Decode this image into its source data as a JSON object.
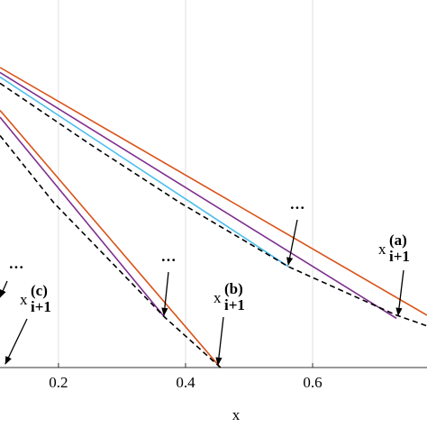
{
  "chart_data": {
    "type": "line",
    "xlabel": "x",
    "xlim": [
      0.108,
      0.78
    ],
    "xticks": [
      0.2,
      0.4,
      0.6
    ],
    "ylim": [
      0.53,
      6.36
    ],
    "grid": true,
    "series": [
      {
        "color": "#d95319",
        "dash": false,
        "x": [
          0.108,
          0.78
        ],
        "values": [
          5.29,
          1.36
        ]
      },
      {
        "color": "#7e2f8e",
        "dash": false,
        "x": [
          0.108,
          0.732
        ],
        "values": [
          5.21,
          1.31
        ]
      },
      {
        "color": "#4dbeee",
        "dash": false,
        "x": [
          0.108,
          0.562
        ],
        "values": [
          5.14,
          2.13
        ]
      },
      {
        "color": "#000000",
        "dash": true,
        "x": [
          0.108,
          0.25,
          0.392,
          0.562,
          0.732,
          0.78
        ],
        "values": [
          5.04,
          4.07,
          3.14,
          2.13,
          1.36,
          1.19
        ]
      },
      {
        "color": "#d95319",
        "dash": false,
        "x": [
          0.108,
          0.455
        ],
        "values": [
          4.61,
          0.53
        ]
      },
      {
        "color": "#7e2f8e",
        "dash": false,
        "x": [
          0.108,
          0.367
        ],
        "values": [
          4.5,
          1.33
        ]
      },
      {
        "color": "#000000",
        "dash": true,
        "x": [
          0.108,
          0.193,
          0.367,
          0.455
        ],
        "values": [
          4.21,
          3.14,
          1.33,
          0.53
        ]
      }
    ],
    "annotations": [
      {
        "text": "···"
      },
      {
        "text": "···"
      },
      {
        "text": "···"
      },
      {
        "base": "x",
        "sup": "(a)",
        "sub": "i+1"
      },
      {
        "base": "x",
        "sup": "(b)",
        "sub": "i+1"
      },
      {
        "base": "x",
        "sup": "(c)",
        "sub": "i+1"
      }
    ]
  }
}
